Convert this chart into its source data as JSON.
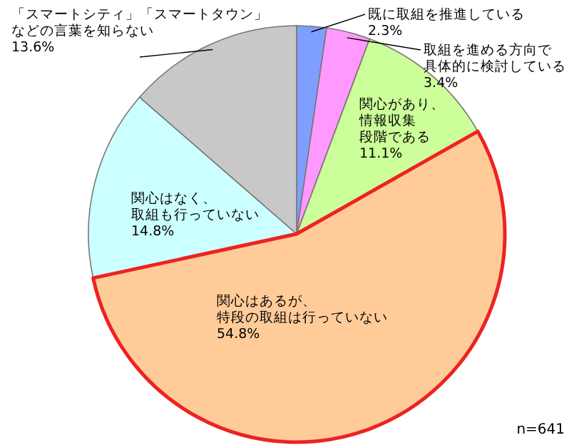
{
  "chart_data": {
    "type": "pie",
    "categories": [
      "既に取組を推進している",
      "取組を進める方向で具体的に検討している",
      "関心があり、情報収集段階である",
      "関心はあるが、特段の取組は行っていない",
      "関心はなく、取組も行っていない",
      "「スマートシティ」「スマートタウン」などの言葉を知らない"
    ],
    "values": [
      2.3,
      3.4,
      11.1,
      54.8,
      14.8,
      13.6
    ],
    "value_labels": [
      "2.3%",
      "3.4%",
      "11.1%",
      "54.8%",
      "14.8%",
      "13.6%"
    ],
    "colors": [
      "#7f9fff",
      "#ff99ff",
      "#ccff99",
      "#ffcc99",
      "#ccffff",
      "#c8c8c8"
    ],
    "annotations": [
      "n=641"
    ],
    "legend": false
  }
}
